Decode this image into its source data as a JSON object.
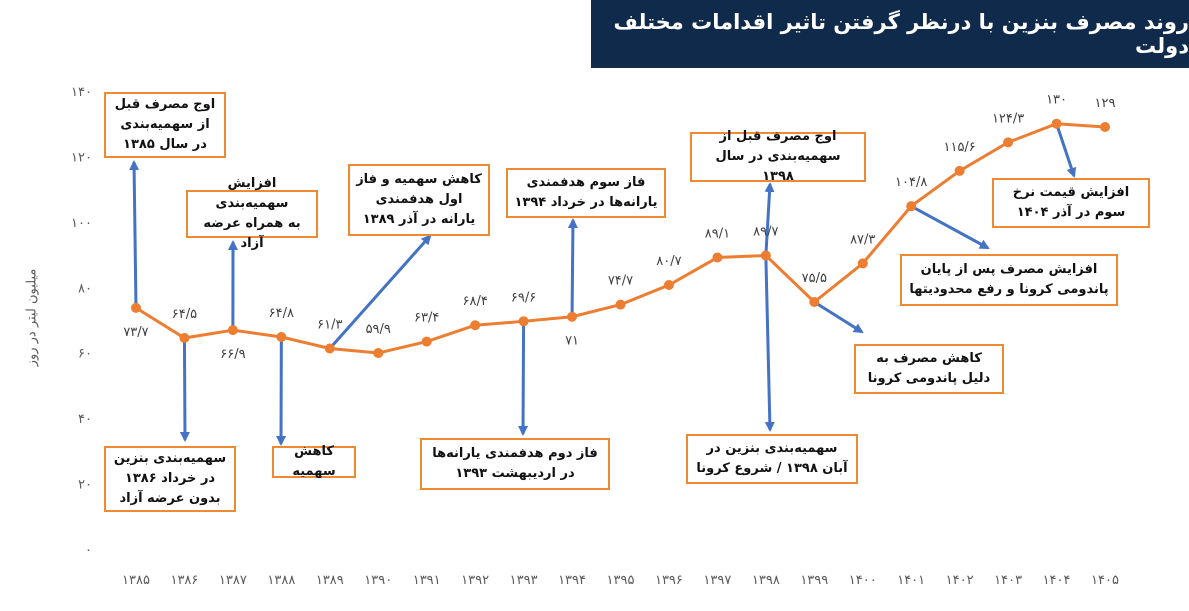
{
  "chart_data": {
    "type": "line",
    "title": "روند مصرف بنزین با درنظر گرفتن تاثیر اقدامات مختلف دولت",
    "ylabel": "میلیون لیتر در روز",
    "xlabel": "",
    "ylim": [
      0,
      140
    ],
    "yticks": [
      "۰",
      "۲۰",
      "۴۰",
      "۶۰",
      "۸۰",
      "۱۰۰",
      "۱۲۰",
      "۱۴۰"
    ],
    "ytick_values": [
      0,
      20,
      40,
      60,
      80,
      100,
      120,
      140
    ],
    "grid": false,
    "line_color": "#ed7d31",
    "arrow_color": "#4472c4",
    "categories": [
      "۱۳۸۵",
      "۱۳۸۶",
      "۱۳۸۷",
      "۱۳۸۸",
      "۱۳۸۹",
      "۱۳۹۰",
      "۱۳۹۱",
      "۱۳۹۲",
      "۱۳۹۳",
      "۱۳۹۴",
      "۱۳۹۵",
      "۱۳۹۶",
      "۱۳۹۷",
      "۱۳۹۸",
      "۱۳۹۹",
      "۱۴۰۰",
      "۱۴۰۱",
      "۱۴۰۲",
      "۱۴۰۳",
      "۱۴۰۴",
      "۱۴۰۵"
    ],
    "values": [
      73.7,
      64.5,
      66.9,
      64.8,
      61.3,
      59.9,
      63.4,
      68.4,
      69.6,
      71,
      74.7,
      80.7,
      89.1,
      89.7,
      75.5,
      87.3,
      104.8,
      115.6,
      124.3,
      130,
      129
    ],
    "data_labels": [
      "۷۳/۷",
      "۶۴/۵",
      "۶۶/۹",
      "۶۴/۸",
      "۶۱/۳",
      "۵۹/۹",
      "۶۳/۴",
      "۶۸/۴",
      "۶۹/۶",
      "۷۱",
      "۷۴/۷",
      "۸۰/۷",
      "۸۹/۱",
      "۸۹/۷",
      "۷۵/۵",
      "۸۷/۳",
      "۱۰۴/۸",
      "۱۱۵/۶",
      "۱۲۴/۳",
      "۱۳۰",
      "۱۲۹"
    ],
    "label_position": [
      "below",
      "above",
      "below",
      "above",
      "above",
      "above",
      "above",
      "above",
      "above",
      "below",
      "above",
      "above",
      "above",
      "above",
      "above",
      "above",
      "above",
      "above",
      "above",
      "above",
      "above"
    ],
    "annotations": [
      {
        "text": "اوج مصرف قبل\nاز سهمیه‌بندی\nدر سال ۱۳۸۵",
        "index": 0
      },
      {
        "text": "سهمیه‌بندی بنزین\nدر خرداد ۱۳۸۶\nبدون عرضه آزاد",
        "index": 1
      },
      {
        "text": "افزایش سهمیه‌بندی\nبه همراه عرضه آزاد",
        "index": 2
      },
      {
        "text": "کاهش سهمیه",
        "index": 3
      },
      {
        "text": "کاهش سهمیه و فاز\nاول هدفمندی\nیارانه در آذر ۱۳۸۹",
        "index": 4
      },
      {
        "text": "فاز دوم هدفمندی یارانه‌ها\nدر اردیبهشت ۱۳۹۳",
        "index": 8
      },
      {
        "text": "فاز سوم هدفمندی\nیارانه‌ها در خرداد ۱۳۹۴",
        "index": 9
      },
      {
        "text": "اوج مصرف قبل از\nسهمیه‌بندی در سال ۱۳۹۸",
        "index": 13
      },
      {
        "text": "سهمیه‌بندی بنزین در\nآبان ۱۳۹۸ / شروع کرونا",
        "index": 13
      },
      {
        "text": "کاهش مصرف به\nدلیل پاندومی کرونا",
        "index": 14
      },
      {
        "text": "افزایش مصرف پس از پایان\nپاندومی کرونا و رفع محدودیتها",
        "index": 16
      },
      {
        "text": "افزایش قیمت نرخ\nسوم در آذر ۱۴۰۴",
        "index": 19
      }
    ]
  }
}
